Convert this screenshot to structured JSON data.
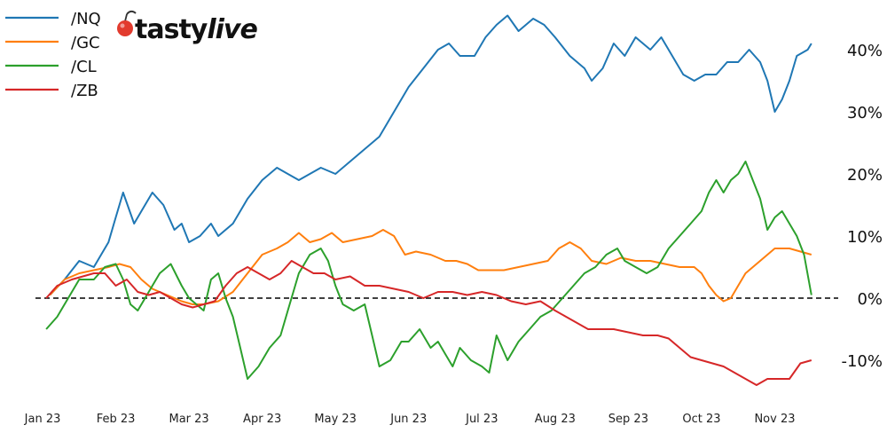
{
  "brand": {
    "name_main": "tasty",
    "name_accent": "live",
    "accent_color": "#e23b2e"
  },
  "chart_data": {
    "type": "line",
    "title": "",
    "xlabel": "",
    "ylabel": "",
    "x_tick_labels": [
      "Jan 23",
      "Feb 23",
      "Mar 23",
      "Apr 23",
      "May 23",
      "Jun 23",
      "Jul 23",
      "Aug 23",
      "Sep 23",
      "Oct 23",
      "Nov 23"
    ],
    "y_tick_labels": [
      "-10%",
      "0%",
      "10%",
      "20%",
      "30%",
      "40%"
    ],
    "y_ticks": [
      -10,
      0,
      10,
      20,
      30,
      40
    ],
    "ylim": [
      -16,
      46
    ],
    "xlim": [
      0,
      10.2
    ],
    "reference_line": {
      "y": 0,
      "style": "dashed"
    },
    "legend_position": "top-left",
    "series": [
      {
        "name": "/NQ",
        "color": "#1f77b4",
        "points": [
          [
            0.1,
            0.5
          ],
          [
            0.3,
            3
          ],
          [
            0.5,
            6
          ],
          [
            0.7,
            5
          ],
          [
            0.9,
            9
          ],
          [
            1.0,
            13
          ],
          [
            1.1,
            17
          ],
          [
            1.25,
            12
          ],
          [
            1.35,
            14
          ],
          [
            1.5,
            17
          ],
          [
            1.65,
            15
          ],
          [
            1.8,
            11
          ],
          [
            1.9,
            12
          ],
          [
            2.0,
            9
          ],
          [
            2.15,
            10
          ],
          [
            2.3,
            12
          ],
          [
            2.4,
            10
          ],
          [
            2.6,
            12
          ],
          [
            2.8,
            16
          ],
          [
            3.0,
            19
          ],
          [
            3.2,
            21
          ],
          [
            3.35,
            20
          ],
          [
            3.5,
            19
          ],
          [
            3.65,
            20
          ],
          [
            3.8,
            21
          ],
          [
            4.0,
            20
          ],
          [
            4.2,
            22
          ],
          [
            4.4,
            24
          ],
          [
            4.6,
            26
          ],
          [
            4.8,
            30
          ],
          [
            5.0,
            34
          ],
          [
            5.2,
            37
          ],
          [
            5.4,
            40
          ],
          [
            5.55,
            41
          ],
          [
            5.7,
            39
          ],
          [
            5.9,
            39
          ],
          [
            6.05,
            42
          ],
          [
            6.2,
            44
          ],
          [
            6.35,
            45.5
          ],
          [
            6.5,
            43
          ],
          [
            6.7,
            45
          ],
          [
            6.85,
            44
          ],
          [
            7.0,
            42
          ],
          [
            7.2,
            39
          ],
          [
            7.4,
            37
          ],
          [
            7.5,
            35
          ],
          [
            7.65,
            37
          ],
          [
            7.8,
            41
          ],
          [
            7.95,
            39
          ],
          [
            8.1,
            42
          ],
          [
            8.3,
            40
          ],
          [
            8.45,
            42
          ],
          [
            8.6,
            39
          ],
          [
            8.75,
            36
          ],
          [
            8.9,
            35
          ],
          [
            9.05,
            36
          ],
          [
            9.2,
            36
          ],
          [
            9.35,
            38
          ],
          [
            9.5,
            38
          ],
          [
            9.65,
            40
          ],
          [
            9.8,
            38
          ],
          [
            9.9,
            35
          ],
          [
            10.0,
            30
          ],
          [
            10.1,
            32
          ],
          [
            10.2,
            35
          ],
          [
            10.3,
            39
          ],
          [
            10.45,
            40
          ],
          [
            10.5,
            41
          ]
        ]
      },
      {
        "name": "/GC",
        "color": "#ff7f0e",
        "points": [
          [
            0.1,
            0.5
          ],
          [
            0.3,
            3
          ],
          [
            0.5,
            4
          ],
          [
            0.7,
            4.5
          ],
          [
            0.9,
            5
          ],
          [
            1.05,
            5.5
          ],
          [
            1.2,
            5
          ],
          [
            1.35,
            3
          ],
          [
            1.5,
            1.5
          ],
          [
            1.7,
            0.5
          ],
          [
            1.9,
            -0.5
          ],
          [
            2.05,
            -1
          ],
          [
            2.2,
            -1
          ],
          [
            2.4,
            -0.5
          ],
          [
            2.6,
            1
          ],
          [
            2.8,
            4
          ],
          [
            3.0,
            7
          ],
          [
            3.2,
            8
          ],
          [
            3.35,
            9
          ],
          [
            3.5,
            10.5
          ],
          [
            3.65,
            9
          ],
          [
            3.8,
            9.5
          ],
          [
            3.95,
            10.5
          ],
          [
            4.1,
            9
          ],
          [
            4.3,
            9.5
          ],
          [
            4.5,
            10
          ],
          [
            4.65,
            11
          ],
          [
            4.8,
            10
          ],
          [
            4.95,
            7
          ],
          [
            5.1,
            7.5
          ],
          [
            5.3,
            7
          ],
          [
            5.5,
            6
          ],
          [
            5.65,
            6
          ],
          [
            5.8,
            5.5
          ],
          [
            5.95,
            4.5
          ],
          [
            6.1,
            4.5
          ],
          [
            6.3,
            4.5
          ],
          [
            6.5,
            5
          ],
          [
            6.7,
            5.5
          ],
          [
            6.9,
            6
          ],
          [
            7.05,
            8
          ],
          [
            7.2,
            9
          ],
          [
            7.35,
            8
          ],
          [
            7.5,
            6
          ],
          [
            7.7,
            5.5
          ],
          [
            7.9,
            6.5
          ],
          [
            8.1,
            6
          ],
          [
            8.3,
            6
          ],
          [
            8.5,
            5.5
          ],
          [
            8.7,
            5
          ],
          [
            8.9,
            5
          ],
          [
            9.0,
            4
          ],
          [
            9.1,
            2
          ],
          [
            9.2,
            0.5
          ],
          [
            9.3,
            -0.5
          ],
          [
            9.4,
            0
          ],
          [
            9.5,
            2
          ],
          [
            9.6,
            4
          ],
          [
            9.8,
            6
          ],
          [
            10.0,
            8
          ],
          [
            10.2,
            8
          ],
          [
            10.35,
            7.5
          ],
          [
            10.5,
            7
          ]
        ]
      },
      {
        "name": "/CL",
        "color": "#2ca02c",
        "points": [
          [
            0.05,
            -5
          ],
          [
            0.2,
            -3
          ],
          [
            0.35,
            0
          ],
          [
            0.5,
            3
          ],
          [
            0.7,
            3
          ],
          [
            0.85,
            5
          ],
          [
            1.0,
            5.5
          ],
          [
            1.1,
            3
          ],
          [
            1.2,
            -1
          ],
          [
            1.3,
            -2
          ],
          [
            1.4,
            0
          ],
          [
            1.5,
            2
          ],
          [
            1.6,
            4
          ],
          [
            1.75,
            5.5
          ],
          [
            1.9,
            2
          ],
          [
            2.0,
            0
          ],
          [
            2.1,
            -1
          ],
          [
            2.2,
            -2
          ],
          [
            2.3,
            3
          ],
          [
            2.4,
            4
          ],
          [
            2.5,
            0
          ],
          [
            2.6,
            -3
          ],
          [
            2.7,
            -8
          ],
          [
            2.8,
            -13
          ],
          [
            2.95,
            -11
          ],
          [
            3.1,
            -8
          ],
          [
            3.25,
            -6
          ],
          [
            3.35,
            -2
          ],
          [
            3.5,
            4
          ],
          [
            3.65,
            7
          ],
          [
            3.8,
            8
          ],
          [
            3.9,
            6
          ],
          [
            4.0,
            2
          ],
          [
            4.1,
            -1
          ],
          [
            4.25,
            -2
          ],
          [
            4.4,
            -1
          ],
          [
            4.5,
            -6
          ],
          [
            4.6,
            -11
          ],
          [
            4.75,
            -10
          ],
          [
            4.9,
            -7
          ],
          [
            5.0,
            -7
          ],
          [
            5.15,
            -5
          ],
          [
            5.3,
            -8
          ],
          [
            5.4,
            -7
          ],
          [
            5.5,
            -9
          ],
          [
            5.6,
            -11
          ],
          [
            5.7,
            -8
          ],
          [
            5.85,
            -10
          ],
          [
            6.0,
            -11
          ],
          [
            6.1,
            -12
          ],
          [
            6.2,
            -6
          ],
          [
            6.35,
            -10
          ],
          [
            6.5,
            -7
          ],
          [
            6.65,
            -5
          ],
          [
            6.8,
            -3
          ],
          [
            6.95,
            -2
          ],
          [
            7.1,
            0
          ],
          [
            7.25,
            2
          ],
          [
            7.4,
            4
          ],
          [
            7.55,
            5
          ],
          [
            7.7,
            7
          ],
          [
            7.85,
            8
          ],
          [
            7.95,
            6
          ],
          [
            8.1,
            5
          ],
          [
            8.25,
            4
          ],
          [
            8.4,
            5
          ],
          [
            8.55,
            8
          ],
          [
            8.7,
            10
          ],
          [
            8.85,
            12
          ],
          [
            9.0,
            14
          ],
          [
            9.1,
            17
          ],
          [
            9.2,
            19
          ],
          [
            9.3,
            17
          ],
          [
            9.4,
            19
          ],
          [
            9.5,
            20
          ],
          [
            9.6,
            22
          ],
          [
            9.7,
            19
          ],
          [
            9.8,
            16
          ],
          [
            9.9,
            11
          ],
          [
            10.0,
            13
          ],
          [
            10.1,
            14
          ],
          [
            10.2,
            12
          ],
          [
            10.3,
            10
          ],
          [
            10.4,
            7
          ],
          [
            10.5,
            0.5
          ]
        ]
      },
      {
        "name": "/ZB",
        "color": "#d62728",
        "points": [
          [
            0.05,
            0
          ],
          [
            0.2,
            2
          ],
          [
            0.4,
            3
          ],
          [
            0.55,
            3.5
          ],
          [
            0.7,
            4
          ],
          [
            0.85,
            4
          ],
          [
            1.0,
            2
          ],
          [
            1.15,
            3
          ],
          [
            1.3,
            1
          ],
          [
            1.45,
            0.5
          ],
          [
            1.6,
            1
          ],
          [
            1.75,
            0
          ],
          [
            1.9,
            -1
          ],
          [
            2.05,
            -1.5
          ],
          [
            2.2,
            -1
          ],
          [
            2.35,
            -0.5
          ],
          [
            2.5,
            2
          ],
          [
            2.65,
            4
          ],
          [
            2.8,
            5
          ],
          [
            2.95,
            4
          ],
          [
            3.1,
            3
          ],
          [
            3.25,
            4
          ],
          [
            3.4,
            6
          ],
          [
            3.55,
            5
          ],
          [
            3.7,
            4
          ],
          [
            3.85,
            4
          ],
          [
            4.0,
            3
          ],
          [
            4.2,
            3.5
          ],
          [
            4.4,
            2
          ],
          [
            4.6,
            2
          ],
          [
            4.8,
            1.5
          ],
          [
            5.0,
            1
          ],
          [
            5.2,
            0
          ],
          [
            5.4,
            1
          ],
          [
            5.6,
            1
          ],
          [
            5.8,
            0.5
          ],
          [
            6.0,
            1
          ],
          [
            6.2,
            0.5
          ],
          [
            6.4,
            -0.5
          ],
          [
            6.6,
            -1
          ],
          [
            6.8,
            -0.5
          ],
          [
            7.0,
            -2
          ],
          [
            7.15,
            -3
          ],
          [
            7.3,
            -4
          ],
          [
            7.45,
            -5
          ],
          [
            7.6,
            -5
          ],
          [
            7.8,
            -5
          ],
          [
            8.0,
            -5.5
          ],
          [
            8.2,
            -6
          ],
          [
            8.4,
            -6
          ],
          [
            8.55,
            -6.5
          ],
          [
            8.7,
            -8
          ],
          [
            8.85,
            -9.5
          ],
          [
            9.0,
            -10
          ],
          [
            9.15,
            -10.5
          ],
          [
            9.3,
            -11
          ],
          [
            9.45,
            -12
          ],
          [
            9.6,
            -13
          ],
          [
            9.75,
            -14
          ],
          [
            9.9,
            -13
          ],
          [
            10.05,
            -13
          ],
          [
            10.2,
            -13
          ],
          [
            10.35,
            -10.5
          ],
          [
            10.5,
            -10
          ]
        ]
      }
    ]
  }
}
